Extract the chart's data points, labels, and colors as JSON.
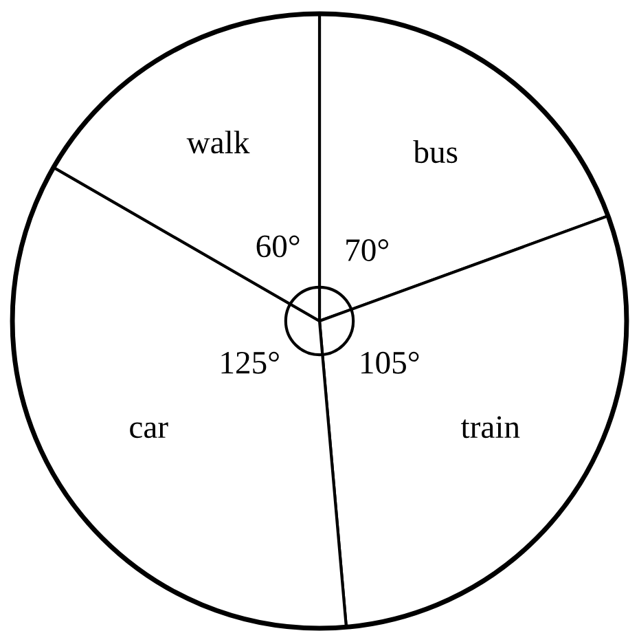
{
  "chart_data": {
    "type": "pie",
    "categories": [
      "bus",
      "train",
      "car",
      "walk"
    ],
    "values": [
      70,
      105,
      125,
      60
    ],
    "value_labels": [
      "70°",
      "105°",
      "125°",
      "60°"
    ],
    "colors": [
      "#ffffff",
      "#ffffff",
      "#ffffff",
      "#ffffff"
    ],
    "legend": false
  }
}
